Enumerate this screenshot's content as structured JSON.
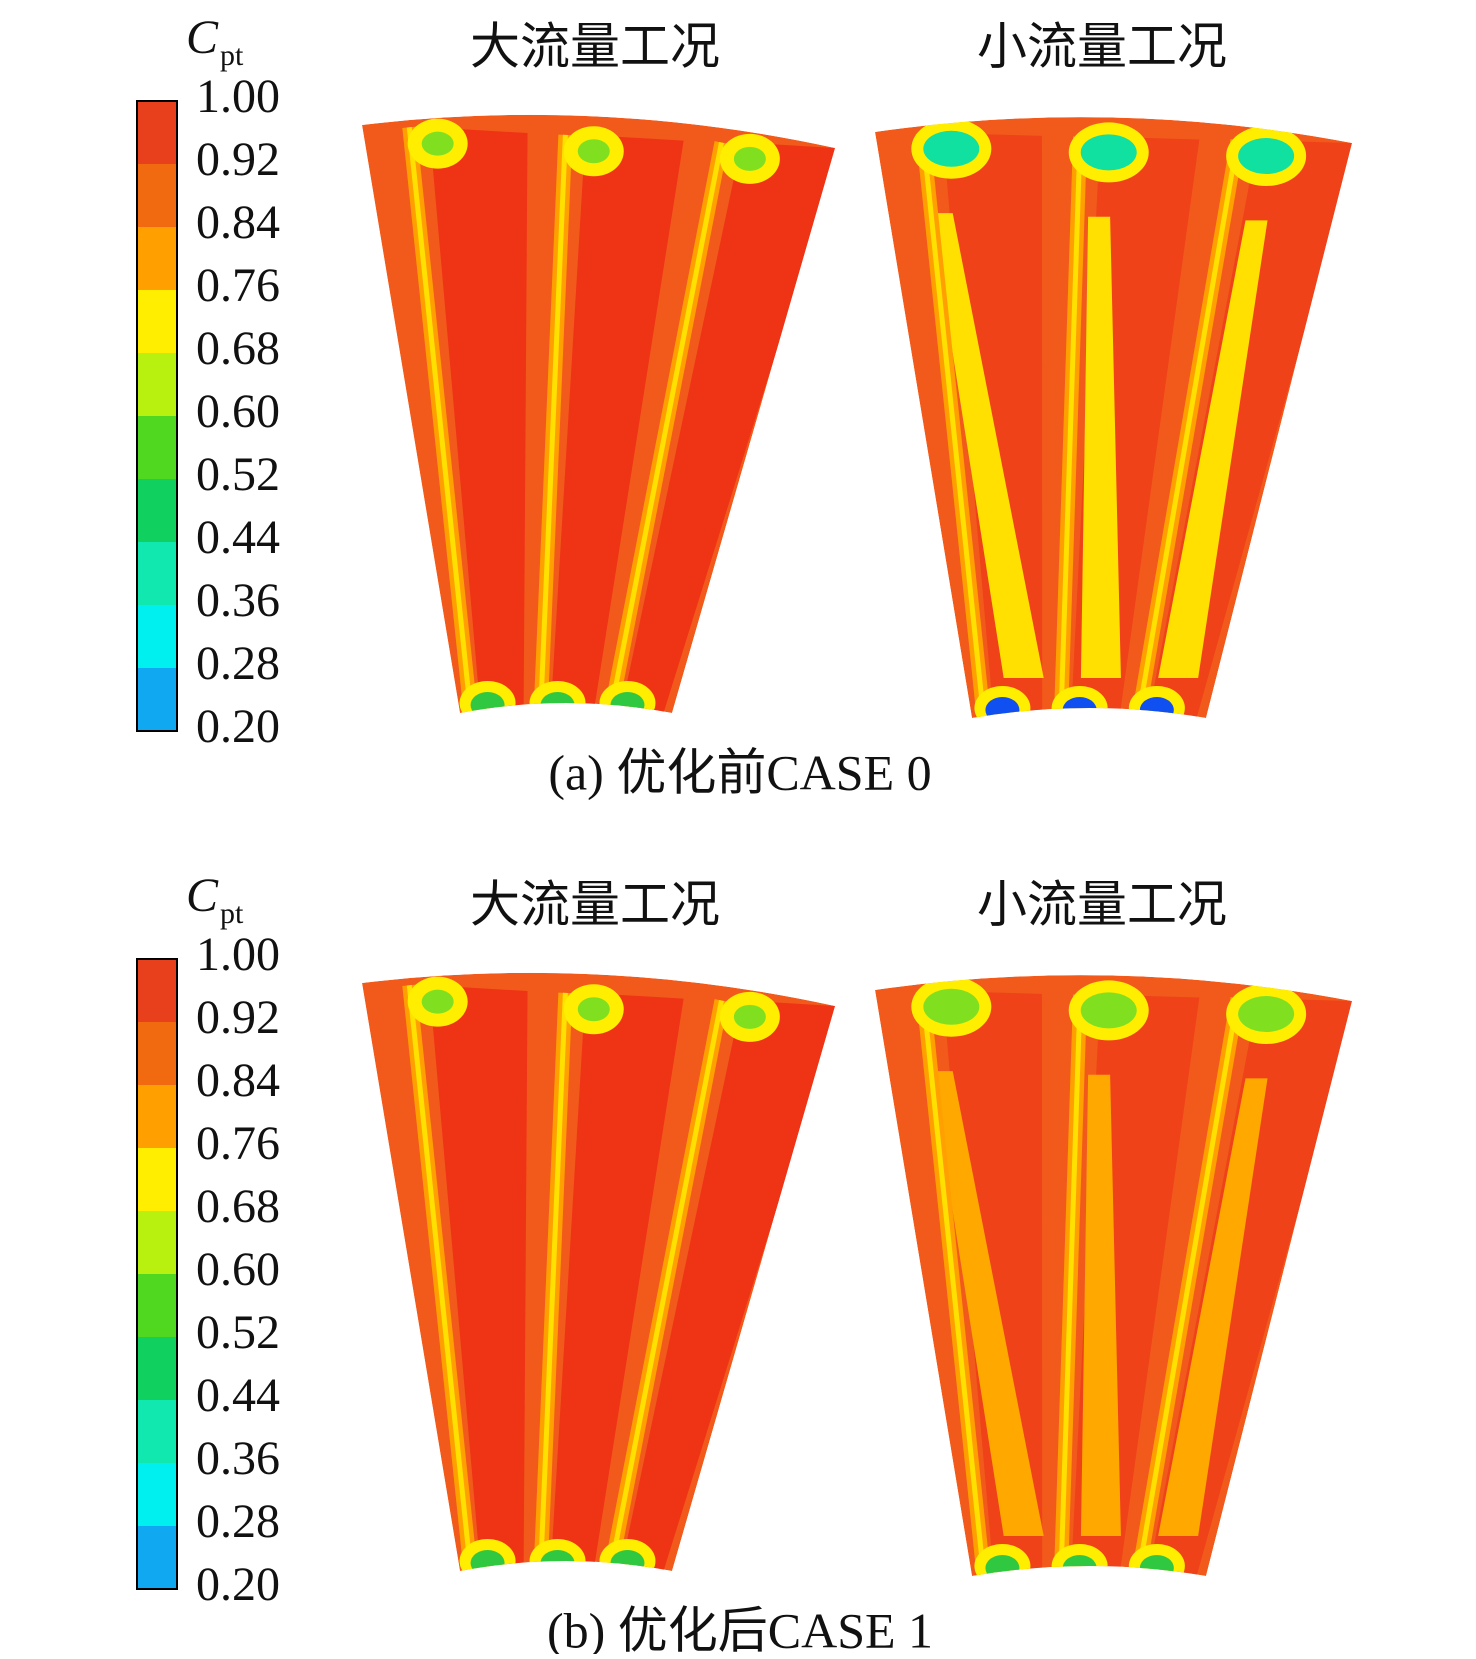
{
  "panels": [
    {
      "legend_title": "C",
      "legend_subscript": "pt",
      "legend_labels": [
        "1.00",
        "0.92",
        "0.84",
        "0.76",
        "0.68",
        "0.60",
        "0.52",
        "0.44",
        "0.36",
        "0.28",
        "0.20"
      ],
      "subplot_titles": [
        "大流量工况",
        "小流量工况"
      ],
      "caption": "(a) 优化前CASE 0"
    },
    {
      "legend_title": "C",
      "legend_subscript": "pt",
      "legend_labels": [
        "1.00",
        "0.92",
        "0.84",
        "0.76",
        "0.68",
        "0.60",
        "0.52",
        "0.44",
        "0.36",
        "0.28",
        "0.20"
      ],
      "subplot_titles": [
        "大流量工况",
        "小流量工况"
      ],
      "caption": "(b) 优化后CASE 1"
    }
  ]
}
